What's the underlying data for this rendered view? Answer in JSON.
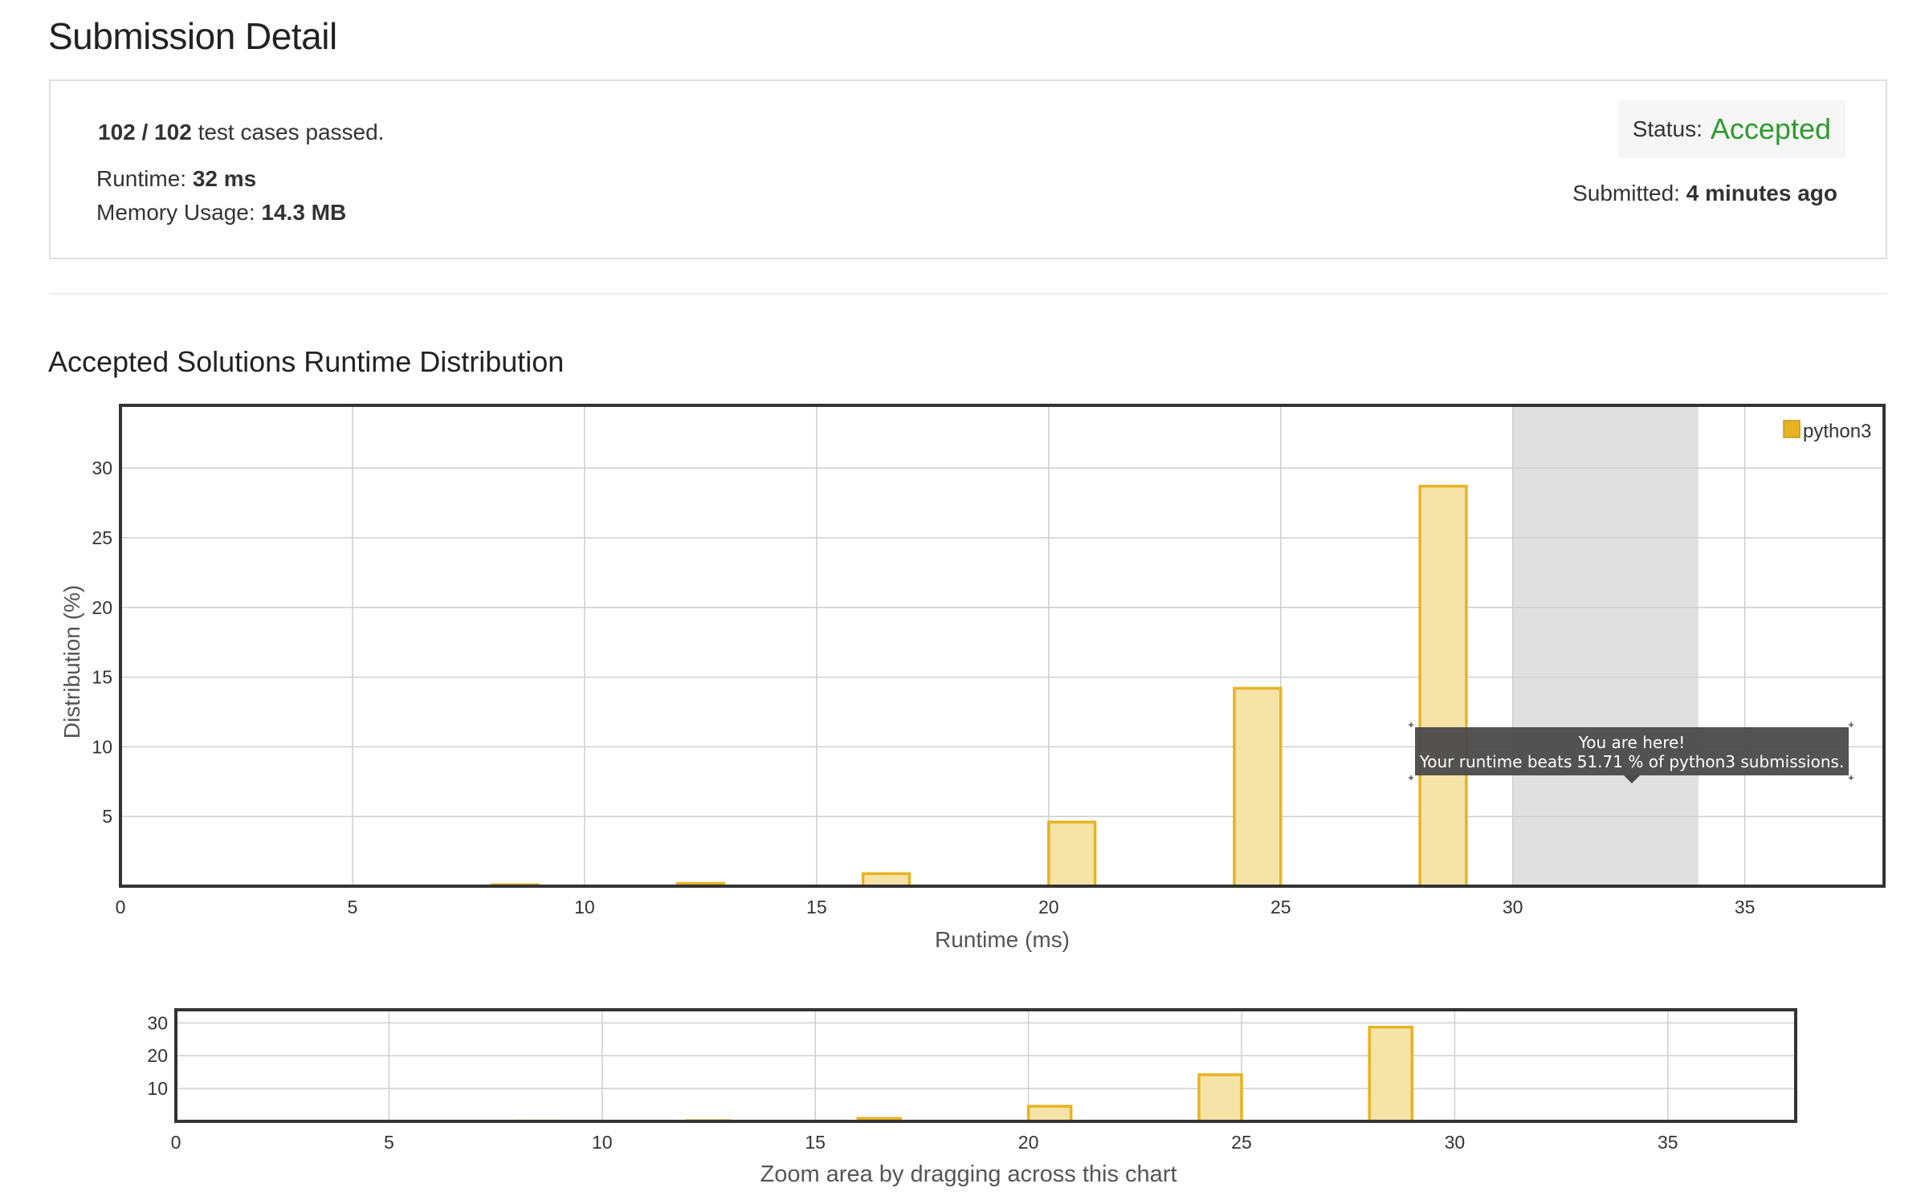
{
  "page": {
    "title": "Submission Detail"
  },
  "summary": {
    "cases_passed": "102 / 102",
    "cases_suffix": "test cases passed.",
    "runtime_label": "Runtime:",
    "runtime_value": "32 ms",
    "memory_label": "Memory Usage:",
    "memory_value": "14.3 MB",
    "status_label": "Status:",
    "status_value": "Accepted",
    "submitted_label": "Submitted:",
    "submitted_value": "4 minutes ago"
  },
  "section": {
    "title": "Accepted Solutions Runtime Distribution"
  },
  "tooltip": {
    "line1": "You are here!",
    "line2": "Your runtime beats 51.71 % of python3 submissions."
  },
  "navigator": {
    "hint": "Zoom area by dragging across this chart"
  },
  "colors": {
    "accepted": "#2e9a2e",
    "bar_fill": "#f5e3a8",
    "bar_stroke": "#e6b422",
    "highlight_band": "#e0e0e0",
    "tooltip_bg": "#4a4a4a"
  },
  "chart_data": [
    {
      "type": "bar",
      "xlabel": "Runtime (ms)",
      "ylabel": "Distribution (%)",
      "xlim": [
        0,
        38
      ],
      "ylim": [
        0,
        34.5
      ],
      "xticks": [
        0,
        5,
        10,
        15,
        20,
        25,
        30,
        35
      ],
      "yticks": [
        5,
        10,
        15,
        20,
        25,
        30
      ],
      "grid": true,
      "legend_position": "top-right",
      "highlight_range": [
        30,
        34
      ],
      "series": [
        {
          "name": "python3",
          "bin_width": 1,
          "x": [
            8,
            12,
            16,
            20,
            24,
            28
          ],
          "values": [
            0.1,
            0.2,
            0.9,
            4.6,
            14.2,
            28.7
          ]
        }
      ]
    },
    {
      "type": "bar",
      "xlim": [
        0,
        38
      ],
      "ylim": [
        0,
        34
      ],
      "xticks": [
        0,
        5,
        10,
        15,
        20,
        25,
        30,
        35
      ],
      "yticks": [
        10,
        20,
        30
      ],
      "grid": true,
      "series": [
        {
          "bin_width": 1,
          "x": [
            8,
            12,
            16,
            20,
            24,
            28
          ],
          "values": [
            0.1,
            0.2,
            0.9,
            4.6,
            14.2,
            28.7
          ]
        }
      ]
    }
  ]
}
